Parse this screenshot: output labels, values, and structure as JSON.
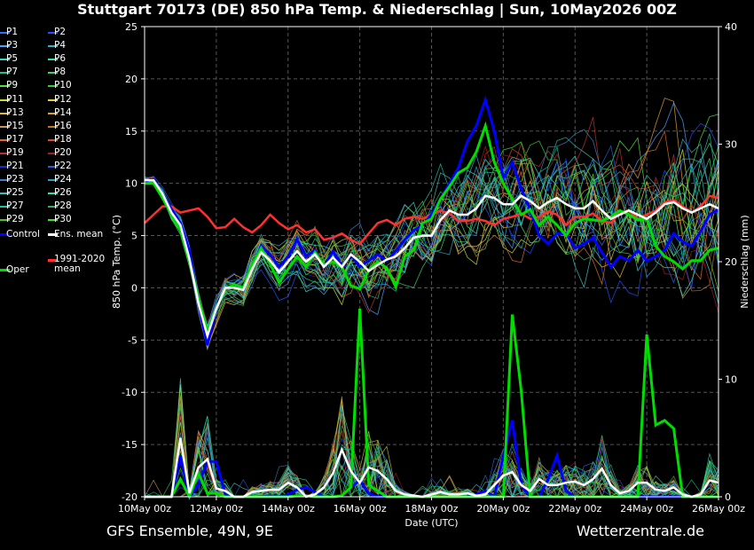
{
  "title": "Stuttgart 70173 (DE)  850 hPa Temp. & Niederschlag | Sun, 10May2026 00Z",
  "footer": {
    "left": "GFS Ensemble, 49N, 9E",
    "right": "Wetterzentrale.de"
  },
  "colors": {
    "background": "#000000",
    "grid": "#555555",
    "control": "#0000ff",
    "oper": "#00dd00",
    "ens_mean": "#ffffff",
    "climate_mean": "#ff3030"
  },
  "legend": [
    {
      "label": "P1",
      "color": "#3070ff"
    },
    {
      "label": "P2",
      "color": "#2050ff"
    },
    {
      "label": "P3",
      "color": "#4aa0ff"
    },
    {
      "label": "P4",
      "color": "#30b0d0"
    },
    {
      "label": "P5",
      "color": "#40d0d0"
    },
    {
      "label": "P6",
      "color": "#30e0a0"
    },
    {
      "label": "P7",
      "color": "#20c090"
    },
    {
      "label": "P8",
      "color": "#40d070"
    },
    {
      "label": "P9",
      "color": "#50e040"
    },
    {
      "label": "P10",
      "color": "#30d030"
    },
    {
      "label": "P11",
      "color": "#c0e040"
    },
    {
      "label": "P12",
      "color": "#e0d040"
    },
    {
      "label": "P13",
      "color": "#e0c030"
    },
    {
      "label": "P14",
      "color": "#e0a030"
    },
    {
      "label": "P15",
      "color": "#d09060"
    },
    {
      "label": "P16",
      "color": "#c07030"
    },
    {
      "label": "P17",
      "color": "#e06a30"
    },
    {
      "label": "P18",
      "color": "#d05030"
    },
    {
      "label": "P19",
      "color": "#c03030"
    },
    {
      "label": "P20",
      "color": "#a02020"
    },
    {
      "label": "P21",
      "color": "#1030d0"
    },
    {
      "label": "P22",
      "color": "#2060e0"
    },
    {
      "label": "P23",
      "color": "#4080c0"
    },
    {
      "label": "P24",
      "color": "#30a0c0"
    },
    {
      "label": "P25",
      "color": "#40c0c0"
    },
    {
      "label": "P26",
      "color": "#30e0b0"
    },
    {
      "label": "P27",
      "color": "#20c0a0"
    },
    {
      "label": "P28",
      "color": "#30b060"
    },
    {
      "label": "P29",
      "color": "#50c030"
    },
    {
      "label": "P30",
      "color": "#40e030"
    },
    {
      "label": "Control",
      "color": "#0000ff"
    },
    {
      "label": "Ens. mean",
      "color": "#ffffff"
    },
    {
      "label": "Oper",
      "color": "#00dd00"
    },
    {
      "label": "1991-2020 mean",
      "color": "#ff3030"
    }
  ],
  "chart_data": {
    "type": "line",
    "title": "Stuttgart 70173 (DE)  850 hPa Temp. & Niederschlag | Sun, 10May2026 00Z",
    "xlabel": "Date (UTC)",
    "ylabel": "850 hPa Temp. (°C)",
    "y2label": "Niederschlag (mm)",
    "xlim": [
      0,
      384
    ],
    "ylim": [
      -20,
      25
    ],
    "y2lim": [
      0,
      40
    ],
    "grid": true,
    "legend_position": "left",
    "x_ticks": [
      {
        "h": 0,
        "label": "10May 00z"
      },
      {
        "h": 48,
        "label": "12May 00z"
      },
      {
        "h": 96,
        "label": "14May 00z"
      },
      {
        "h": 144,
        "label": "16May 00z"
      },
      {
        "h": 192,
        "label": "18May 00z"
      },
      {
        "h": 240,
        "label": "20May 00z"
      },
      {
        "h": 288,
        "label": "22May 00z"
      },
      {
        "h": 336,
        "label": "24May 00z"
      },
      {
        "h": 384,
        "label": "26May 00z"
      }
    ],
    "y_ticks": [
      -20,
      -15,
      -10,
      -5,
      0,
      5,
      10,
      15,
      20,
      25
    ],
    "y2_ticks": [
      0,
      10,
      20,
      30,
      40
    ],
    "x_hours": [
      0,
      6,
      12,
      18,
      24,
      30,
      36,
      42,
      48,
      54,
      60,
      66,
      72,
      78,
      84,
      90,
      96,
      102,
      108,
      114,
      120,
      126,
      132,
      138,
      144,
      150,
      156,
      162,
      168,
      174,
      180,
      186,
      192,
      198,
      204,
      210,
      216,
      222,
      228,
      234,
      240,
      246,
      252,
      258,
      264,
      270,
      276,
      282,
      288,
      294,
      300,
      306,
      312,
      318,
      324,
      330,
      336,
      342,
      348,
      354,
      360,
      366,
      372,
      378,
      384
    ],
    "series_temp": [
      {
        "name": "Control",
        "values": [
          10.2,
          10.4,
          9.0,
          7.5,
          6.2,
          3.5,
          -1.5,
          -5.5,
          -2.0,
          0.0,
          0.2,
          0.0,
          2.0,
          4.0,
          3.2,
          2.0,
          3.0,
          4.6,
          3.0,
          3.6,
          2.0,
          3.5,
          2.0,
          3.2,
          2.0,
          2.6,
          3.2,
          2.6,
          3.5,
          4.6,
          5.5,
          6.0,
          7.0,
          8.5,
          10.0,
          11.5,
          14.0,
          15.5,
          18.0,
          15.0,
          10.5,
          12.0,
          9.5,
          7.5,
          5.0,
          4.2,
          5.2,
          5.2,
          3.8,
          4.2,
          4.8,
          3.4,
          2.0,
          3.0,
          2.6,
          3.6,
          2.6,
          3.0,
          3.6,
          5.2,
          4.4,
          4.0,
          5.4,
          7.0,
          7.5
        ]
      },
      {
        "name": "Oper",
        "values": [
          10.0,
          10.0,
          8.6,
          7.0,
          5.5,
          2.6,
          -1.0,
          -4.2,
          -2.0,
          -0.1,
          0.3,
          0.0,
          2.2,
          3.8,
          2.3,
          0.5,
          1.8,
          3.0,
          2.0,
          3.4,
          2.2,
          2.5,
          2.0,
          0.2,
          -0.1,
          1.7,
          2.5,
          1.9,
          0.1,
          3.0,
          3.6,
          6.2,
          6.6,
          8.5,
          9.7,
          11.0,
          11.5,
          13.0,
          15.5,
          12.0,
          10.0,
          8.5,
          7.0,
          7.5,
          6.0,
          6.8,
          6.0,
          5.0,
          6.2,
          6.6,
          6.5,
          6.4,
          6.8,
          7.4,
          7.0,
          6.5,
          6.6,
          4.0,
          3.0,
          2.5,
          1.8,
          2.6,
          2.6,
          3.6,
          3.8
        ]
      },
      {
        "name": "Ens. mean",
        "values": [
          10.3,
          10.3,
          9.0,
          7.2,
          6.0,
          2.8,
          -1.5,
          -4.6,
          -2.0,
          0.0,
          0.0,
          -0.2,
          1.8,
          3.4,
          2.6,
          1.5,
          2.5,
          3.5,
          2.5,
          3.2,
          2.0,
          2.9,
          2.0,
          3.2,
          2.5,
          1.6,
          2.2,
          2.7,
          3.0,
          3.8,
          4.8,
          5.0,
          5.0,
          6.5,
          7.4,
          7.0,
          7.0,
          7.6,
          8.8,
          8.6,
          8.0,
          8.0,
          8.8,
          8.3,
          7.6,
          8.2,
          8.6,
          8.0,
          7.6,
          7.6,
          8.3,
          7.4,
          6.6,
          7.0,
          7.4,
          7.0,
          6.6,
          7.2,
          8.0,
          8.2,
          7.6,
          7.2,
          7.6,
          8.0,
          7.6
        ]
      },
      {
        "name": "1991-2020 mean",
        "values": [
          6.2,
          7.0,
          7.8,
          7.8,
          7.2,
          7.4,
          7.6,
          6.8,
          5.7,
          5.8,
          6.6,
          5.8,
          5.3,
          6.0,
          7.0,
          6.2,
          5.6,
          6.0,
          5.3,
          5.6,
          4.6,
          4.8,
          5.2,
          4.6,
          4.2,
          5.2,
          6.2,
          6.5,
          6.0,
          6.6,
          6.8,
          6.6,
          7.0,
          7.4,
          7.1,
          6.4,
          6.4,
          6.6,
          6.4,
          6.0,
          6.6,
          6.8,
          7.1,
          6.6,
          6.8,
          7.3,
          7.0,
          6.0,
          6.8,
          6.8,
          7.1,
          6.4,
          6.2,
          7.2,
          7.4,
          6.6,
          7.0,
          7.4,
          8.2,
          8.4,
          7.8,
          7.2,
          7.8,
          8.8,
          8.6
        ]
      }
    ],
    "series_precip": [
      {
        "name": "Control",
        "values": [
          0,
          0,
          0,
          0,
          3.5,
          0,
          1,
          3,
          3,
          0.2,
          0,
          0,
          0,
          0,
          0.1,
          0,
          0.2,
          0.6,
          0.8,
          0.4,
          0,
          0,
          0.1,
          0.8,
          1.4,
          0.3,
          0,
          0,
          0,
          0,
          0,
          0,
          0,
          0,
          0,
          0,
          0,
          0.2,
          0.5,
          0,
          3.5,
          6.5,
          1.0,
          0,
          0,
          1.5,
          3.5,
          0.5,
          0,
          0,
          0,
          0,
          0,
          0,
          0,
          0,
          0,
          0,
          0,
          0,
          0,
          0,
          0,
          0,
          0
        ]
      },
      {
        "name": "Oper",
        "values": [
          0,
          0,
          0,
          0,
          1.5,
          0,
          2,
          0.3,
          0.3,
          0,
          0,
          0,
          0,
          0,
          0,
          0,
          0,
          0.1,
          0.1,
          0,
          0,
          0,
          0.1,
          0.8,
          16,
          1,
          0.5,
          0,
          0,
          0,
          0,
          0,
          0,
          0,
          0,
          0,
          0,
          0,
          0,
          0,
          0,
          15.5,
          9,
          0,
          0,
          0,
          0,
          0,
          0,
          0,
          0,
          0,
          0,
          0,
          0,
          0,
          13.8,
          6.1,
          6.5,
          5.8,
          0,
          0,
          0,
          0,
          0
        ]
      },
      {
        "name": "Ens. mean",
        "values": [
          0,
          0,
          0,
          0,
          5,
          0.3,
          2.5,
          3.2,
          0.7,
          0.5,
          0,
          0,
          0.4,
          0.5,
          0.6,
          0.6,
          1.2,
          0.8,
          0,
          0.2,
          0.8,
          2.0,
          4.0,
          2.2,
          1.2,
          2.5,
          2.2,
          1.5,
          0.5,
          0.2,
          0.1,
          0,
          0.2,
          0.4,
          0.2,
          0.2,
          0.3,
          0.1,
          0.2,
          1.0,
          1.8,
          2.1,
          1.0,
          0.5,
          1.5,
          1.0,
          1.0,
          1.2,
          1.3,
          1.0,
          1.5,
          2.4,
          1.0,
          0.3,
          0.5,
          1.2,
          1.2,
          0.6,
          0.5,
          0.8,
          0.2,
          0,
          0.2,
          1.4,
          1.2
        ]
      }
    ]
  }
}
